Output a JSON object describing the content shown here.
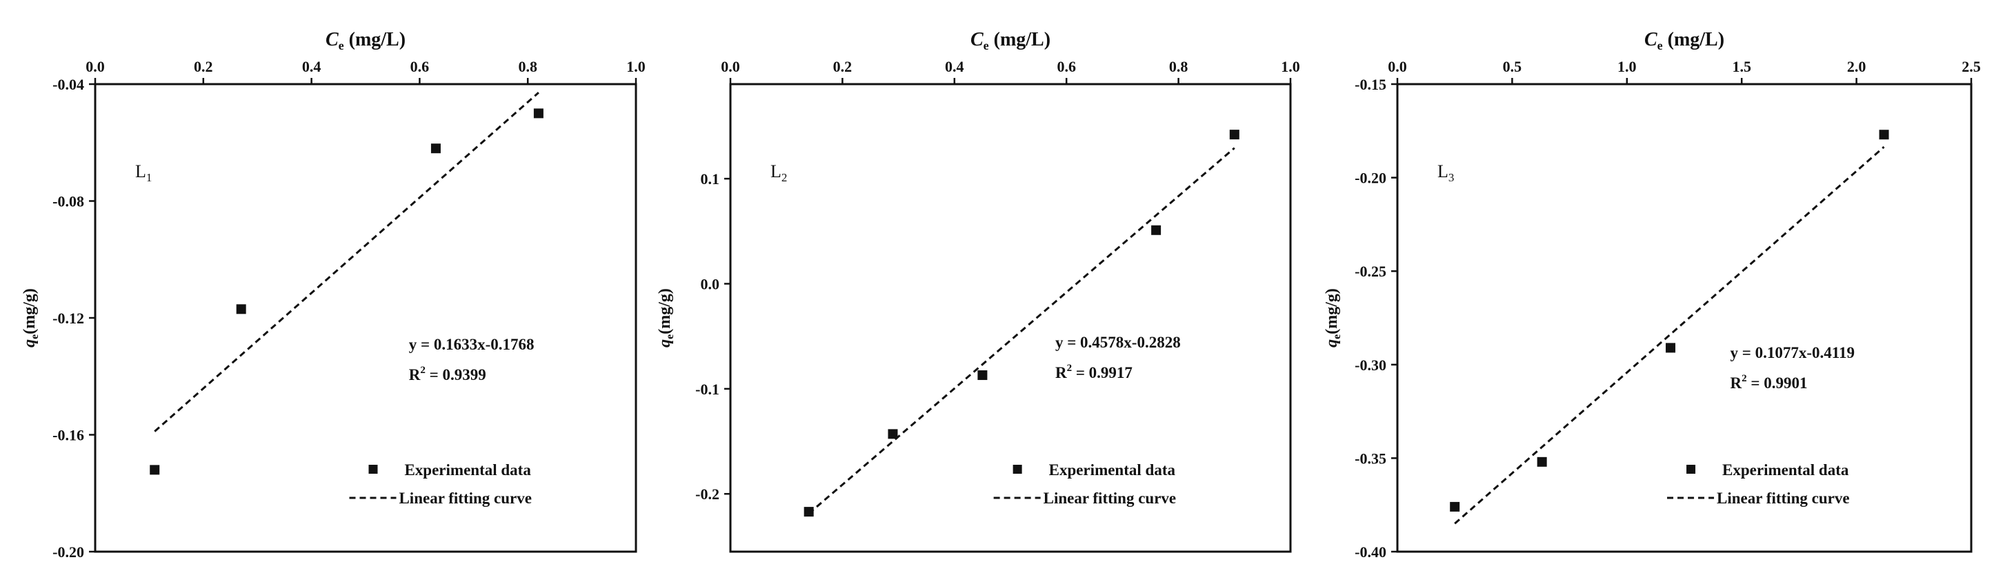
{
  "chart_data": [
    {
      "type": "scatter",
      "panel_label": "L",
      "panel_label_sub": "1",
      "xlabel": "C",
      "xlabel_sub": "e",
      "xlabel_unit": " (mg/L)",
      "ylabel": "q",
      "ylabel_sub": "e",
      "ylabel_unit": "(mg/g)",
      "x_ticks": [
        "0.0",
        "0.2",
        "0.4",
        "0.6",
        "0.8",
        "1.0"
      ],
      "y_ticks": [
        "-0.04",
        "-0.08",
        "-0.12",
        "-0.16",
        "-0.20"
      ],
      "xlim": [
        0.0,
        1.0
      ],
      "ylim": [
        -0.2,
        -0.04
      ],
      "x_axis_position": "top",
      "grid": false,
      "points": [
        {
          "x": 0.11,
          "y": -0.172
        },
        {
          "x": 0.27,
          "y": -0.117
        },
        {
          "x": 0.63,
          "y": -0.062
        },
        {
          "x": 0.82,
          "y": -0.05
        }
      ],
      "fit": {
        "slope": 0.1633,
        "intercept": -0.1768,
        "x_start": 0.11,
        "x_end": 0.82
      },
      "equation": "y = 0.1633x-0.1768",
      "r2_label": "R",
      "r2_sup": "2",
      "r2_value": " = 0.9399",
      "legend": {
        "points": "Experimental data",
        "fit": "Linear fitting curve"
      },
      "legend_position": "bottom-right"
    },
    {
      "type": "scatter",
      "panel_label": "L",
      "panel_label_sub": "2",
      "xlabel": "C",
      "xlabel_sub": "e",
      "xlabel_unit": " (mg/L)",
      "ylabel": "q",
      "ylabel_sub": "e",
      "ylabel_unit": "(mg/g)",
      "x_ticks": [
        "0.0",
        "0.2",
        "0.4",
        "0.6",
        "0.8",
        "1.0"
      ],
      "y_ticks": [
        "0.1",
        "0.0",
        "-0.1",
        "-0.2"
      ],
      "xlim": [
        0.0,
        1.0
      ],
      "ylim": [
        -0.255,
        0.19
      ],
      "x_axis_position": "top",
      "grid": false,
      "points": [
        {
          "x": 0.14,
          "y": -0.217
        },
        {
          "x": 0.29,
          "y": -0.143
        },
        {
          "x": 0.45,
          "y": -0.087
        },
        {
          "x": 0.76,
          "y": 0.051
        },
        {
          "x": 0.9,
          "y": 0.142
        }
      ],
      "fit": {
        "slope": 0.4578,
        "intercept": -0.2828,
        "x_start": 0.14,
        "x_end": 0.9
      },
      "equation": "y = 0.4578x-0.2828",
      "r2_label": "R",
      "r2_sup": "2",
      "r2_value": " = 0.9917",
      "legend": {
        "points": "Experimental data",
        "fit": "Linear fitting curve"
      },
      "legend_position": "bottom-right"
    },
    {
      "type": "scatter",
      "panel_label": "L",
      "panel_label_sub": "3",
      "xlabel": "C",
      "xlabel_sub": "e",
      "xlabel_unit": " (mg/L)",
      "ylabel": "q",
      "ylabel_sub": "e",
      "ylabel_unit": "(mg/g)",
      "x_ticks": [
        "0.0",
        "0.5",
        "1.0",
        "1.5",
        "2.0",
        "2.5"
      ],
      "y_ticks": [
        "-0.15",
        "-0.20",
        "-0.25",
        "-0.30",
        "-0.35",
        "-0.40"
      ],
      "xlim": [
        0.0,
        2.5
      ],
      "ylim": [
        -0.4,
        -0.15
      ],
      "x_axis_position": "top",
      "grid": false,
      "points": [
        {
          "x": 0.25,
          "y": -0.376
        },
        {
          "x": 0.63,
          "y": -0.352
        },
        {
          "x": 1.19,
          "y": -0.291
        },
        {
          "x": 2.12,
          "y": -0.177
        }
      ],
      "fit": {
        "slope": 0.1077,
        "intercept": -0.4119,
        "x_start": 0.25,
        "x_end": 2.12
      },
      "equation": "y = 0.1077x-0.4119",
      "r2_label": "R",
      "r2_sup": "2",
      "r2_value": " = 0.9901",
      "legend": {
        "points": "Experimental data",
        "fit": "Linear fitting curve"
      },
      "legend_position": "bottom-right"
    }
  ]
}
